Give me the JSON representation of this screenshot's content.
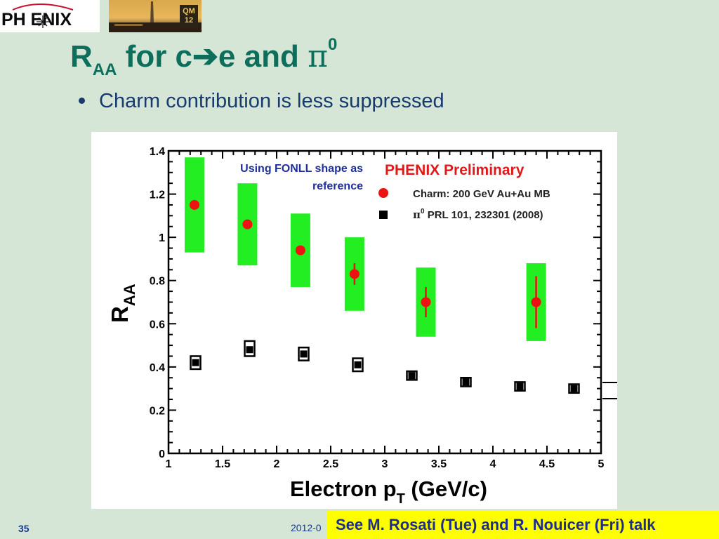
{
  "header": {
    "logo_text": "PH ENIX",
    "conference_badge": "QM 12"
  },
  "slide": {
    "title_main": "R",
    "title_sub": "AA",
    "title_mid": " for c",
    "title_arrow": "➔",
    "title_after": "e and ",
    "title_pi": "π",
    "title_sup": "0",
    "bullet": "Charm contribution is less suppressed",
    "slide_number": "35",
    "date": "2012-0",
    "callout": "See M. Rosati (Tue) and R. Nouicer (Fri) talk"
  },
  "colors": {
    "background": "#d5e6d6",
    "title": "#0e6e5c",
    "bullet": "#173a6f",
    "charm_marker": "#ee1111",
    "charm_band": "#22ee22",
    "pi0_marker": "#000000",
    "callout_bg": "#ffff00",
    "callout_text": "#1d2e8a",
    "preliminary": "#e01818",
    "annotation": "#1f2f9a"
  },
  "chart_data": {
    "type": "scatter",
    "xlabel_main": "Electron p",
    "xlabel_sub": "T",
    "xlabel_unit": " (GeV/c)",
    "ylabel_main": "R",
    "ylabel_sub": "AA",
    "xlim": [
      1,
      5
    ],
    "ylim": [
      0,
      1.4
    ],
    "x_ticks": [
      "1",
      "1.5",
      "2",
      "2.5",
      "3",
      "3.5",
      "4",
      "4.5",
      "5"
    ],
    "y_ticks": [
      "0",
      "0.2",
      "0.4",
      "0.6",
      "0.8",
      "1",
      "1.2",
      "1.4"
    ],
    "preliminary_label": "PHENIX Preliminary",
    "annotation_line1": "Using FONLL shape as",
    "annotation_line2": "reference",
    "series": [
      {
        "name": "Charm: 200 GeV Au+Au MB",
        "points": [
          {
            "x": 1.24,
            "y": 1.15,
            "stat": 0.02,
            "sys_low": 0.93,
            "sys_high": 1.37
          },
          {
            "x": 1.73,
            "y": 1.06,
            "stat": 0.02,
            "sys_low": 0.87,
            "sys_high": 1.25
          },
          {
            "x": 2.22,
            "y": 0.94,
            "stat": 0.02,
            "sys_low": 0.77,
            "sys_high": 1.11
          },
          {
            "x": 2.72,
            "y": 0.83,
            "stat": 0.05,
            "sys_low": 0.66,
            "sys_high": 1.0
          },
          {
            "x": 3.38,
            "y": 0.7,
            "stat": 0.07,
            "sys_low": 0.54,
            "sys_high": 0.86
          },
          {
            "x": 4.4,
            "y": 0.7,
            "stat": 0.12,
            "sys_low": 0.52,
            "sys_high": 0.88
          }
        ]
      },
      {
        "name_pi": "π",
        "name_sup": "0",
        "name": " PRL 101, 232301 (2008)",
        "points": [
          {
            "x": 1.25,
            "y": 0.42,
            "sys_low": 0.39,
            "sys_high": 0.45
          },
          {
            "x": 1.75,
            "y": 0.48,
            "sys_low": 0.45,
            "sys_high": 0.52
          },
          {
            "x": 2.25,
            "y": 0.46,
            "sys_low": 0.43,
            "sys_high": 0.49
          },
          {
            "x": 2.75,
            "y": 0.41,
            "sys_low": 0.38,
            "sys_high": 0.44
          },
          {
            "x": 3.25,
            "y": 0.36,
            "sys_low": 0.34,
            "sys_high": 0.38
          },
          {
            "x": 3.75,
            "y": 0.33,
            "sys_low": 0.31,
            "sys_high": 0.35
          },
          {
            "x": 4.25,
            "y": 0.31,
            "sys_low": 0.29,
            "sys_high": 0.33
          },
          {
            "x": 4.75,
            "y": 0.3,
            "sys_low": 0.28,
            "sys_high": 0.32
          }
        ]
      }
    ],
    "legend_position": "top-right",
    "grid": false
  }
}
